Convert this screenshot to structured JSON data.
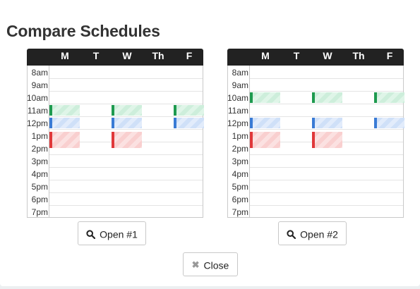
{
  "dialog": {
    "title": "Compare Schedules",
    "close_label": "Close"
  },
  "days": [
    "M",
    "T",
    "W",
    "Th",
    "F"
  ],
  "times": [
    "8am",
    "9am",
    "10am",
    "11am",
    "12pm",
    "1pm",
    "2pm",
    "3pm",
    "4pm",
    "5pm",
    "6pm",
    "7pm"
  ],
  "colors": {
    "green": "#1e9a4f",
    "blue": "#3a7bd5",
    "red": "#e0383a"
  },
  "schedules": [
    {
      "button_label": "Open #1",
      "blocks": [
        {
          "day": "M",
          "start": "11am",
          "color": "green"
        },
        {
          "day": "W",
          "start": "11am",
          "color": "green"
        },
        {
          "day": "F",
          "start": "11am",
          "color": "green"
        },
        {
          "day": "M",
          "start": "12pm",
          "color": "blue"
        },
        {
          "day": "W",
          "start": "12pm",
          "color": "blue"
        },
        {
          "day": "F",
          "start": "12pm",
          "color": "blue"
        },
        {
          "day": "M",
          "start": "1pm",
          "color": "red"
        },
        {
          "day": "W",
          "start": "1pm",
          "color": "red"
        }
      ]
    },
    {
      "button_label": "Open #2",
      "blocks": [
        {
          "day": "M",
          "start": "10am",
          "color": "green"
        },
        {
          "day": "W",
          "start": "10am",
          "color": "green"
        },
        {
          "day": "F",
          "start": "10am",
          "color": "green"
        },
        {
          "day": "M",
          "start": "12pm",
          "color": "blue"
        },
        {
          "day": "W",
          "start": "12pm",
          "color": "blue"
        },
        {
          "day": "F",
          "start": "12pm",
          "color": "blue"
        },
        {
          "day": "M",
          "start": "1pm",
          "color": "red"
        },
        {
          "day": "W",
          "start": "1pm",
          "color": "red"
        }
      ]
    }
  ]
}
